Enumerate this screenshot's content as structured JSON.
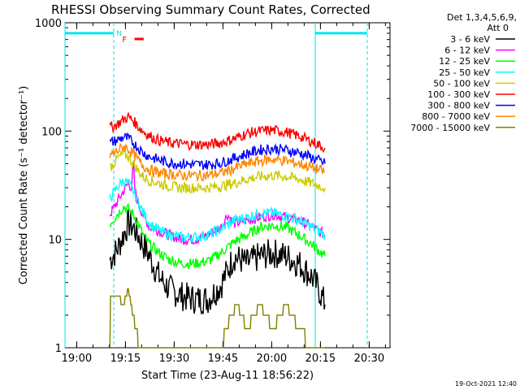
{
  "chart_data": {
    "type": "line",
    "title": "RHESSI Observing Summary Count Rates, Corrected",
    "xlabel": "Start Time (23-Aug-11 18:56:22)",
    "ylabel": "Corrected Count Rate (s⁻¹ detector⁻¹)",
    "y_scale": "log",
    "ylim": [
      1,
      1000
    ],
    "xlim_minutes": [
      0,
      100
    ],
    "x_ticks": [
      {
        "label": "19:00",
        "minute": 3.6
      },
      {
        "label": "19:15",
        "minute": 18.6
      },
      {
        "label": "19:30",
        "minute": 33.6
      },
      {
        "label": "19:45",
        "minute": 48.6
      },
      {
        "label": "20:00",
        "minute": 63.6
      },
      {
        "label": "20:15",
        "minute": 78.6
      },
      {
        "label": "20:30",
        "minute": 93.6
      }
    ],
    "y_ticks": [
      {
        "label": "1",
        "value": 1
      },
      {
        "label": "10",
        "value": 10
      },
      {
        "label": "100",
        "value": 100
      },
      {
        "label": "1000",
        "value": 1000
      }
    ],
    "legend": {
      "placement": "top-right",
      "header": [
        "Det 1,3,4,5,6,9,",
        "Att 0"
      ]
    },
    "annotations": {
      "N": "N",
      "F": "F",
      "timestamp": "19-Oct-2021 12:40"
    },
    "series": [
      {
        "name": "3 - 6 keV",
        "color": "#000000",
        "x": [
          13.8,
          16,
          18,
          19.5,
          21,
          22.5,
          24,
          26,
          29,
          32,
          36,
          40,
          44,
          48,
          52,
          56,
          60,
          64,
          68,
          72,
          76,
          78,
          80
        ],
        "y": [
          6.5,
          8,
          11,
          14,
          13,
          11,
          9,
          7,
          4.5,
          3.5,
          3,
          2.8,
          2.8,
          3.8,
          7,
          6,
          7,
          7.5,
          7,
          6,
          4.5,
          3.5,
          2.5
        ]
      },
      {
        "name": "6 - 12 keV",
        "color": "#ff00ff",
        "x": [
          13.8,
          16,
          18,
          19.5,
          20.5,
          21,
          21.5,
          22.5,
          24,
          26,
          29,
          32,
          36,
          40,
          44,
          48,
          50,
          52,
          56,
          60,
          64,
          68,
          72,
          76,
          80
        ],
        "y": [
          17,
          22,
          28,
          33,
          30,
          50,
          28,
          22,
          17,
          13,
          12,
          11,
          10,
          10,
          11,
          13,
          17,
          14,
          15,
          16,
          17,
          16,
          15,
          13,
          11
        ]
      },
      {
        "name": "12 - 25 keV",
        "color": "#00ff00",
        "x": [
          13.8,
          16,
          18,
          19.5,
          21,
          22.5,
          24,
          26,
          29,
          32,
          36,
          40,
          44,
          48,
          52,
          56,
          60,
          64,
          68,
          72,
          76,
          80
        ],
        "y": [
          14,
          17,
          20,
          19,
          17,
          14,
          11,
          9,
          7.5,
          6.5,
          6,
          6,
          6.3,
          7.5,
          9.5,
          11,
          13,
          13.5,
          13,
          11,
          9,
          7
        ]
      },
      {
        "name": "25 - 50 keV",
        "color": "#00ffff",
        "x": [
          13.8,
          16,
          18,
          19.5,
          21,
          22.5,
          24,
          26,
          29,
          32,
          36,
          40,
          44,
          48,
          52,
          56,
          60,
          64,
          68,
          72,
          76,
          80
        ],
        "y": [
          24,
          30,
          35,
          33,
          28,
          22,
          18,
          14,
          12,
          11,
          10.5,
          10.5,
          11,
          12.5,
          15,
          16,
          17.5,
          17.5,
          16.5,
          15,
          13,
          11
        ]
      },
      {
        "name": "50 - 100 keV",
        "color": "#cccc00",
        "x": [
          13.8,
          16,
          18,
          19.5,
          21,
          22.5,
          24,
          26,
          29,
          32,
          36,
          40,
          44,
          48,
          52,
          56,
          60,
          64,
          68,
          72,
          76,
          80
        ],
        "y": [
          46,
          55,
          62,
          58,
          50,
          43,
          38,
          35,
          33,
          31,
          30,
          30,
          30,
          31,
          33,
          36,
          38,
          39,
          38,
          36,
          33,
          30
        ]
      },
      {
        "name": "100 - 300 keV",
        "color": "#ff0000",
        "x": [
          13.8,
          16,
          18,
          19.5,
          21,
          22.5,
          24,
          26,
          29,
          32,
          36,
          40,
          44,
          48,
          52,
          56,
          60,
          64,
          68,
          72,
          76,
          80
        ],
        "y": [
          108,
          115,
          128,
          135,
          125,
          110,
          100,
          90,
          82,
          78,
          76,
          75,
          75,
          78,
          85,
          95,
          100,
          102,
          98,
          90,
          80,
          70
        ]
      },
      {
        "name": "300 - 800 keV",
        "color": "#0000ff",
        "x": [
          13.8,
          16,
          18,
          19.5,
          21,
          22.5,
          24,
          26,
          29,
          32,
          36,
          40,
          44,
          48,
          52,
          56,
          60,
          64,
          68,
          72,
          76,
          80
        ],
        "y": [
          78,
          82,
          88,
          85,
          78,
          70,
          63,
          58,
          54,
          51,
          50,
          49,
          49,
          51,
          56,
          62,
          67,
          69,
          67,
          63,
          57,
          50
        ]
      },
      {
        "name": "800 - 7000 keV",
        "color": "#ff8800",
        "x": [
          13.8,
          16,
          18,
          19.5,
          21,
          22.5,
          24,
          26,
          29,
          32,
          36,
          40,
          44,
          48,
          52,
          56,
          60,
          64,
          68,
          72,
          76,
          80
        ],
        "y": [
          60,
          65,
          72,
          68,
          62,
          54,
          48,
          44,
          41,
          40,
          39,
          39,
          39,
          41,
          45,
          50,
          53,
          55,
          53,
          50,
          46,
          42
        ]
      },
      {
        "name": "7000 - 15000 keV",
        "color": "#808000",
        "x": [
          13.8,
          14,
          16,
          18,
          19.5,
          21,
          22,
          23,
          25,
          27,
          29,
          32,
          36,
          40,
          44,
          48,
          51,
          53,
          56,
          60,
          64,
          68,
          72,
          76,
          80
        ],
        "y": [
          1,
          3,
          3.2,
          2.5,
          3.5,
          2,
          1.5,
          1,
          1,
          1,
          1,
          1,
          1,
          1,
          1,
          1,
          2,
          2.5,
          1.5,
          2.5,
          1.5,
          2.5,
          1.5,
          1,
          1
        ]
      }
    ],
    "attenuator_lines": [
      {
        "minute_start": 0,
        "minute_end": 15,
        "value": 800
      },
      {
        "minute_start": 77,
        "minute_end": 93,
        "value": 800
      }
    ],
    "night_markers_minutes": [
      0,
      15,
      77,
      93
    ]
  }
}
